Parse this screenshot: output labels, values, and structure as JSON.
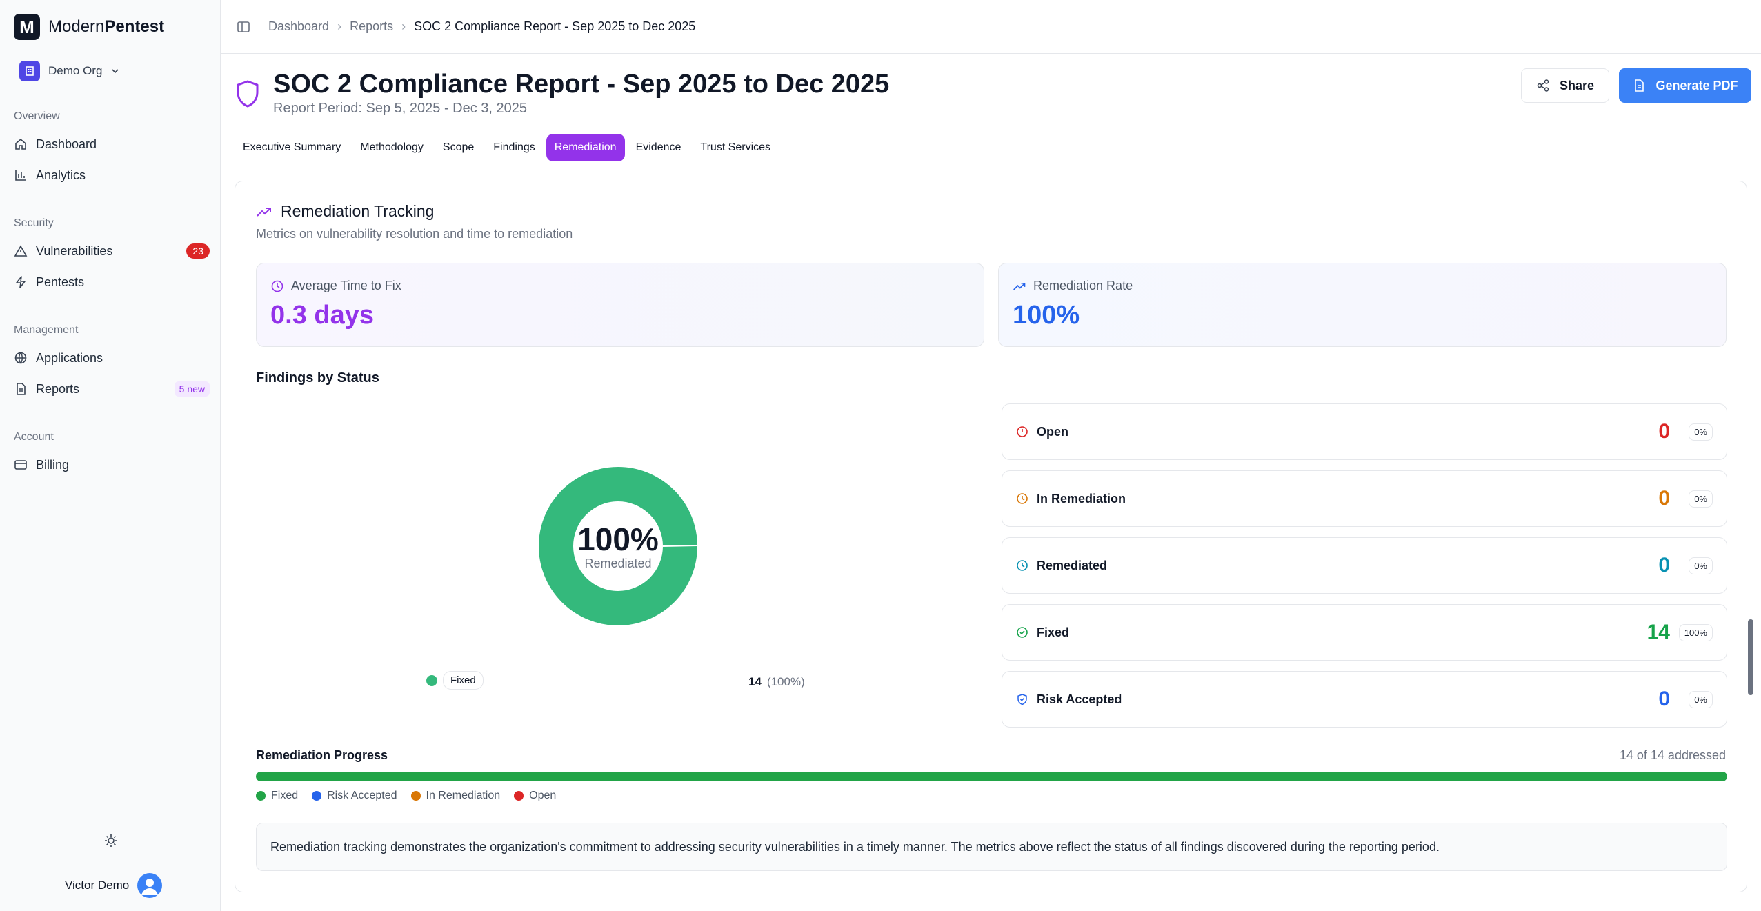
{
  "app": {
    "brand_light": "Modern",
    "brand_bold": "Pentest",
    "org": "Demo Org"
  },
  "sidebar": {
    "sections": [
      {
        "label": "Overview"
      },
      {
        "label": "Security"
      },
      {
        "label": "Management"
      },
      {
        "label": "Account"
      }
    ],
    "items": [
      {
        "label": "Dashboard",
        "icon": "home-icon"
      },
      {
        "label": "Analytics",
        "icon": "bar-chart-icon"
      },
      {
        "label": "Vulnerabilities",
        "icon": "warning-icon",
        "badge": "23"
      },
      {
        "label": "Pentests",
        "icon": "zap-icon"
      },
      {
        "label": "Applications",
        "icon": "globe-icon"
      },
      {
        "label": "Reports",
        "icon": "file-icon",
        "badge": "5 new"
      },
      {
        "label": "Billing",
        "icon": "credit-card-icon"
      }
    ],
    "user": "Victor Demo"
  },
  "breadcrumb": {
    "items": [
      "Dashboard",
      "Reports"
    ],
    "current": "SOC 2 Compliance Report - Sep 2025 to Dec 2025"
  },
  "header": {
    "title": "SOC 2 Compliance Report - Sep 2025 to Dec 2025",
    "period": "Report Period: Sep 5, 2025 - Dec 3, 2025",
    "share_label": "Share",
    "pdf_label": "Generate PDF"
  },
  "tabs": [
    "Executive Summary",
    "Methodology",
    "Scope",
    "Findings",
    "Remediation",
    "Evidence",
    "Trust Services"
  ],
  "active_tab": "Remediation",
  "remediation": {
    "title": "Remediation Tracking",
    "subtitle": "Metrics on vulnerability resolution and time to remediation",
    "avg_time_label": "Average Time to Fix",
    "avg_time_value": "0.3 days",
    "rate_label": "Remediation Rate",
    "rate_value": "100%",
    "findings_title": "Findings by Status",
    "donut_pct": "100%",
    "donut_label": "Remediated",
    "legend_label": "Fixed",
    "legend_count": "14",
    "legend_pct": "(100%)",
    "statuses": [
      {
        "label": "Open",
        "count": "0",
        "pct": "0%",
        "color": "#dc2626"
      },
      {
        "label": "In Remediation",
        "count": "0",
        "pct": "0%",
        "color": "#d97706"
      },
      {
        "label": "Remediated",
        "count": "0",
        "pct": "0%",
        "color": "#0891b2"
      },
      {
        "label": "Fixed",
        "count": "14",
        "pct": "100%",
        "color": "#16a34a"
      },
      {
        "label": "Risk Accepted",
        "count": "0",
        "pct": "0%",
        "color": "#2563eb"
      }
    ],
    "progress_title": "Remediation Progress",
    "progress_count": "14 of 14 addressed",
    "progress_fraction": 1.0,
    "progress_legend": [
      {
        "label": "Fixed",
        "color": "#22a447"
      },
      {
        "label": "Risk Accepted",
        "color": "#2563eb"
      },
      {
        "label": "In Remediation",
        "color": "#d97706"
      },
      {
        "label": "Open",
        "color": "#dc2626"
      }
    ],
    "note": "Remediation tracking demonstrates the organization's commitment to addressing security vulnerabilities in a timely manner. The metrics above reflect the status of all findings discovered during the reporting period."
  },
  "colors": {
    "accent": "#9333ea",
    "primary": "#3b82f6",
    "donut": "#34b97c"
  }
}
